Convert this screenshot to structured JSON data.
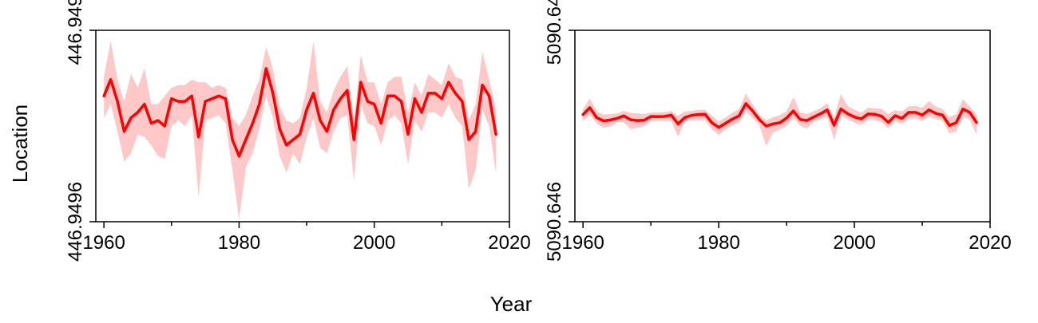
{
  "figure": {
    "xlabel": "Year",
    "ylabel": "Location",
    "line_color": "#ff0000",
    "band_color": "#ffc8c8"
  },
  "chart_data": [
    {
      "type": "line",
      "panel": "left",
      "xlim": [
        1958.8,
        2020
      ],
      "ylim": [
        446.94955,
        446.94962
      ],
      "x_ticks": [
        1960,
        1980,
        2000,
        2020
      ],
      "y_ticks": [
        {
          "value": 446.94955,
          "label": "446.9496"
        },
        {
          "value": 446.94962,
          "label": "446.949"
        }
      ],
      "series": [
        {
          "x": [
            1960,
            1961,
            1962,
            1963,
            1964,
            1965,
            1966,
            1967,
            1968,
            1969,
            1970,
            1971,
            1972,
            1973,
            1974,
            1975,
            1976,
            1977,
            1978,
            1979,
            1980,
            1981,
            1982,
            1983,
            1984,
            1985,
            1986,
            1987,
            1988,
            1989,
            1990,
            1991,
            1992,
            1993,
            1994,
            1995,
            1996,
            1997,
            1998,
            1999,
            2000,
            2001,
            2002,
            2003,
            2004,
            2005,
            2006,
            2007,
            2008,
            2009,
            2010,
            2011,
            2012,
            2013,
            2014,
            2015,
            2016,
            2017,
            2018
          ],
          "y": [
            446.949596,
            446.949602,
            446.949594,
            446.949583,
            446.949588,
            446.94959,
            446.949593,
            446.949586,
            446.949587,
            446.949585,
            446.949595,
            446.949594,
            446.949594,
            446.949596,
            446.949581,
            446.949594,
            446.949595,
            446.949596,
            446.949595,
            446.94958,
            446.949574,
            446.94958,
            446.949586,
            446.949593,
            446.949606,
            446.949597,
            446.949584,
            446.949578,
            446.94958,
            446.949582,
            446.949591,
            446.949597,
            446.949587,
            446.949583,
            446.949591,
            446.949595,
            446.949598,
            446.94958,
            446.949601,
            446.949594,
            446.949593,
            446.949586,
            446.949596,
            446.949596,
            446.949594,
            446.949582,
            446.949595,
            446.94959,
            446.949597,
            446.949597,
            446.949595,
            446.949601,
            446.949597,
            446.949594,
            446.94958,
            446.949583,
            446.9496,
            446.949596,
            446.949582
          ],
          "lower": [
            446.949588,
            446.949593,
            446.949583,
            446.949572,
            446.949575,
            446.949582,
            446.949581,
            446.949578,
            446.949574,
            446.949573,
            446.949585,
            446.949587,
            446.949585,
            446.949589,
            446.949559,
            446.949587,
            446.949588,
            446.949589,
            446.949586,
            446.949569,
            446.949551,
            446.94957,
            446.949575,
            446.949584,
            446.949596,
            446.949588,
            446.949574,
            446.949568,
            446.949575,
            446.949571,
            446.949581,
            446.949588,
            446.949577,
            446.949575,
            446.949583,
            446.949588,
            446.949589,
            446.949565,
            446.949593,
            446.949586,
            446.949585,
            446.949578,
            446.949587,
            446.949589,
            446.949586,
            446.949571,
            446.949587,
            446.949583,
            446.94959,
            446.94959,
            446.949588,
            446.949593,
            446.949588,
            446.949585,
            446.949562,
            446.949569,
            446.949591,
            446.949585,
            446.949568
          ],
          "upper": [
            446.949603,
            446.949616,
            446.949602,
            446.949594,
            446.949604,
            446.949599,
            446.949606,
            446.949593,
            446.949593,
            446.949596,
            446.949599,
            446.9496,
            446.9496,
            446.949602,
            446.949601,
            446.949601,
            446.949599,
            446.9496,
            446.949599,
            446.949588,
            446.949585,
            446.949589,
            446.949596,
            446.949602,
            446.949614,
            446.949606,
            446.949592,
            446.949587,
            446.949586,
            446.949588,
            446.949599,
            446.949616,
            446.949594,
            446.94959,
            446.949598,
            446.949603,
            446.949607,
            446.949587,
            446.949611,
            446.949601,
            446.949601,
            446.949593,
            446.949601,
            446.949603,
            446.949603,
            446.94959,
            446.949601,
            446.949596,
            446.949604,
            446.949602,
            446.9496,
            446.949608,
            446.949603,
            446.949602,
            446.949587,
            446.949593,
            446.949612,
            446.949602,
            446.949591
          ]
        }
      ]
    },
    {
      "type": "line",
      "panel": "right",
      "xlim": [
        1958.8,
        2020
      ],
      "ylim": [
        5090.6462,
        5090.6469
      ],
      "x_ticks": [
        1960,
        1980,
        2000,
        2020
      ],
      "y_ticks": [
        {
          "value": 5090.6462,
          "label": "5090.646"
        },
        {
          "value": 5090.6469,
          "label": "5090.64"
        }
      ],
      "series": [
        {
          "x": [
            1960,
            1961,
            1962,
            1963,
            1964,
            1965,
            1966,
            1967,
            1968,
            1969,
            1970,
            1971,
            1972,
            1973,
            1974,
            1975,
            1976,
            1977,
            1978,
            1979,
            1980,
            1981,
            1982,
            1983,
            1984,
            1985,
            1986,
            1987,
            1988,
            1989,
            1990,
            1991,
            1992,
            1993,
            1994,
            1995,
            1996,
            1997,
            1998,
            1999,
            2000,
            2001,
            2002,
            2003,
            2004,
            2005,
            2006,
            2007,
            2008,
            2009,
            2010,
            2011,
            2012,
            2013,
            2014,
            2015,
            2016,
            2017,
            2018
          ],
          "y": [
            5090.646592,
            5090.646617,
            5090.646581,
            5090.646569,
            5090.646572,
            5090.646578,
            5090.646587,
            5090.646573,
            5090.64657,
            5090.646571,
            5090.646585,
            5090.646584,
            5090.646585,
            5090.64659,
            5090.646558,
            5090.646581,
            5090.646589,
            5090.646592,
            5090.646593,
            5090.646562,
            5090.646545,
            5090.64656,
            5090.646575,
            5090.646587,
            5090.646632,
            5090.646605,
            5090.646573,
            5090.64655,
            5090.646558,
            5090.646562,
            5090.646579,
            5090.646605,
            5090.646574,
            5090.64657,
            5090.646583,
            5090.646595,
            5090.646609,
            5090.646553,
            5090.646612,
            5090.646595,
            5090.646583,
            5090.646576,
            5090.646594,
            5090.646593,
            5090.646586,
            5090.646563,
            5090.646588,
            5090.646578,
            5090.6466,
            5090.6466,
            5090.64659,
            5090.646609,
            5090.646596,
            5090.64659,
            5090.646552,
            5090.646562,
            5090.646612,
            5090.6466,
            5090.646563
          ],
          "lower": [
            5090.646568,
            5090.646591,
            5090.64656,
            5090.646543,
            5090.646548,
            5090.646565,
            5090.646563,
            5090.646539,
            5090.646543,
            5090.64655,
            5090.646569,
            5090.646569,
            5090.646569,
            5090.646568,
            5090.646511,
            5090.646565,
            5090.646571,
            5090.646571,
            5090.646572,
            5090.646538,
            5090.646517,
            5090.646537,
            5090.646553,
            5090.646562,
            5090.646604,
            5090.646579,
            5090.646553,
            5090.646476,
            5090.646526,
            5090.646538,
            5090.646551,
            5090.64658,
            5090.646551,
            5090.646541,
            5090.646566,
            5090.646574,
            5090.646584,
            5090.646499,
            5090.646588,
            5090.646575,
            5090.646563,
            5090.646555,
            5090.646573,
            5090.646572,
            5090.646563,
            5090.646542,
            5090.646568,
            5090.646558,
            5090.646576,
            5090.646578,
            5090.646568,
            5090.646585,
            5090.646575,
            5090.64657,
            5090.646523,
            5090.646531,
            5090.646584,
            5090.646574,
            5090.646518
          ],
          "upper": [
            5090.646612,
            5090.646651,
            5090.646604,
            5090.646592,
            5090.646594,
            5090.646596,
            5090.646605,
            5090.646598,
            5090.646596,
            5090.646594,
            5090.646599,
            5090.6466,
            5090.646601,
            5090.646605,
            5090.646587,
            5090.646603,
            5090.646605,
            5090.646609,
            5090.646609,
            5090.646587,
            5090.646567,
            5090.646581,
            5090.646598,
            5090.646612,
            5090.646669,
            5090.646628,
            5090.646592,
            5090.64657,
            5090.646582,
            5090.64659,
            5090.646604,
            5090.646656,
            5090.6466,
            5090.646594,
            5090.646604,
            5090.646615,
            5090.646634,
            5090.646582,
            5090.646666,
            5090.646623,
            5090.64661,
            5090.646598,
            5090.646617,
            5090.646615,
            5090.646612,
            5090.646594,
            5090.646608,
            5090.646603,
            5090.646622,
            5090.646624,
            5090.646617,
            5090.646641,
            5090.646621,
            5090.646612,
            5090.646583,
            5090.646593,
            5090.646648,
            5090.646621,
            5090.646593
          ]
        }
      ]
    }
  ]
}
